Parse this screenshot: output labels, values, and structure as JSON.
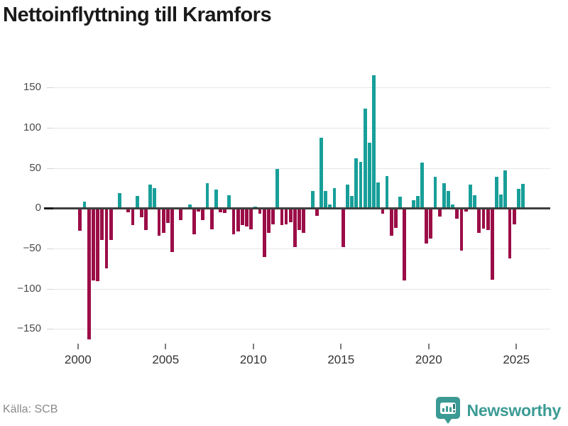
{
  "title": "Nettoinflyttning till Kramfors",
  "source": "Källa: SCB",
  "branding": {
    "name": "Newsworthy"
  },
  "colors": {
    "positive": "#189f99",
    "negative": "#9b0d47",
    "zero_line": "#3f3f3f",
    "gridline": "#e6e6e6",
    "brand_teal": "#3b9b94",
    "title_text": "#1a1a1a",
    "axis_text": "#4a4a4a"
  },
  "y_axis": {
    "ticks": [
      150,
      100,
      50,
      0,
      -50,
      -100,
      -150
    ]
  },
  "x_axis": {
    "ticks": [
      2000,
      2005,
      2010,
      2015,
      2020,
      2025
    ]
  },
  "chart_data": {
    "type": "bar",
    "title": "Nettoinflyttning till Kramfors",
    "xlabel": "",
    "ylabel": "",
    "frequency": "quarterly",
    "start_period": "2000-Q1",
    "end_period": "2025-Q2",
    "ylim": [
      -175,
      175
    ],
    "grid": true,
    "x_tick_labels": [
      "2000",
      "2005",
      "2010",
      "2015",
      "2020",
      "2025"
    ],
    "series": [
      {
        "name": "Nettoinflyttning",
        "values": [
          -28,
          8,
          -163,
          -90,
          -91,
          -39,
          -75,
          -39,
          0,
          19,
          0,
          -5,
          -21,
          15,
          -11,
          -27,
          29,
          25,
          -34,
          -31,
          -18,
          -54,
          0,
          -15,
          0,
          5,
          -32,
          -4,
          -15,
          31,
          -26,
          23,
          -5,
          -6,
          16,
          -32,
          -29,
          -21,
          -23,
          -26,
          2,
          -7,
          -61,
          -31,
          -20,
          49,
          -21,
          -20,
          -17,
          -48,
          -27,
          -31,
          0,
          21,
          -9,
          88,
          21,
          5,
          25,
          0,
          -48,
          29,
          15,
          62,
          58,
          124,
          81,
          165,
          32,
          -7,
          40,
          -34,
          -24,
          14,
          -90,
          0,
          10,
          15,
          57,
          -44,
          -38,
          39,
          -10,
          31,
          21,
          5,
          -13,
          -53,
          -4,
          29,
          16,
          -31,
          -25,
          -27,
          -89,
          39,
          17,
          47,
          -62,
          -20,
          24,
          30
        ]
      }
    ]
  }
}
